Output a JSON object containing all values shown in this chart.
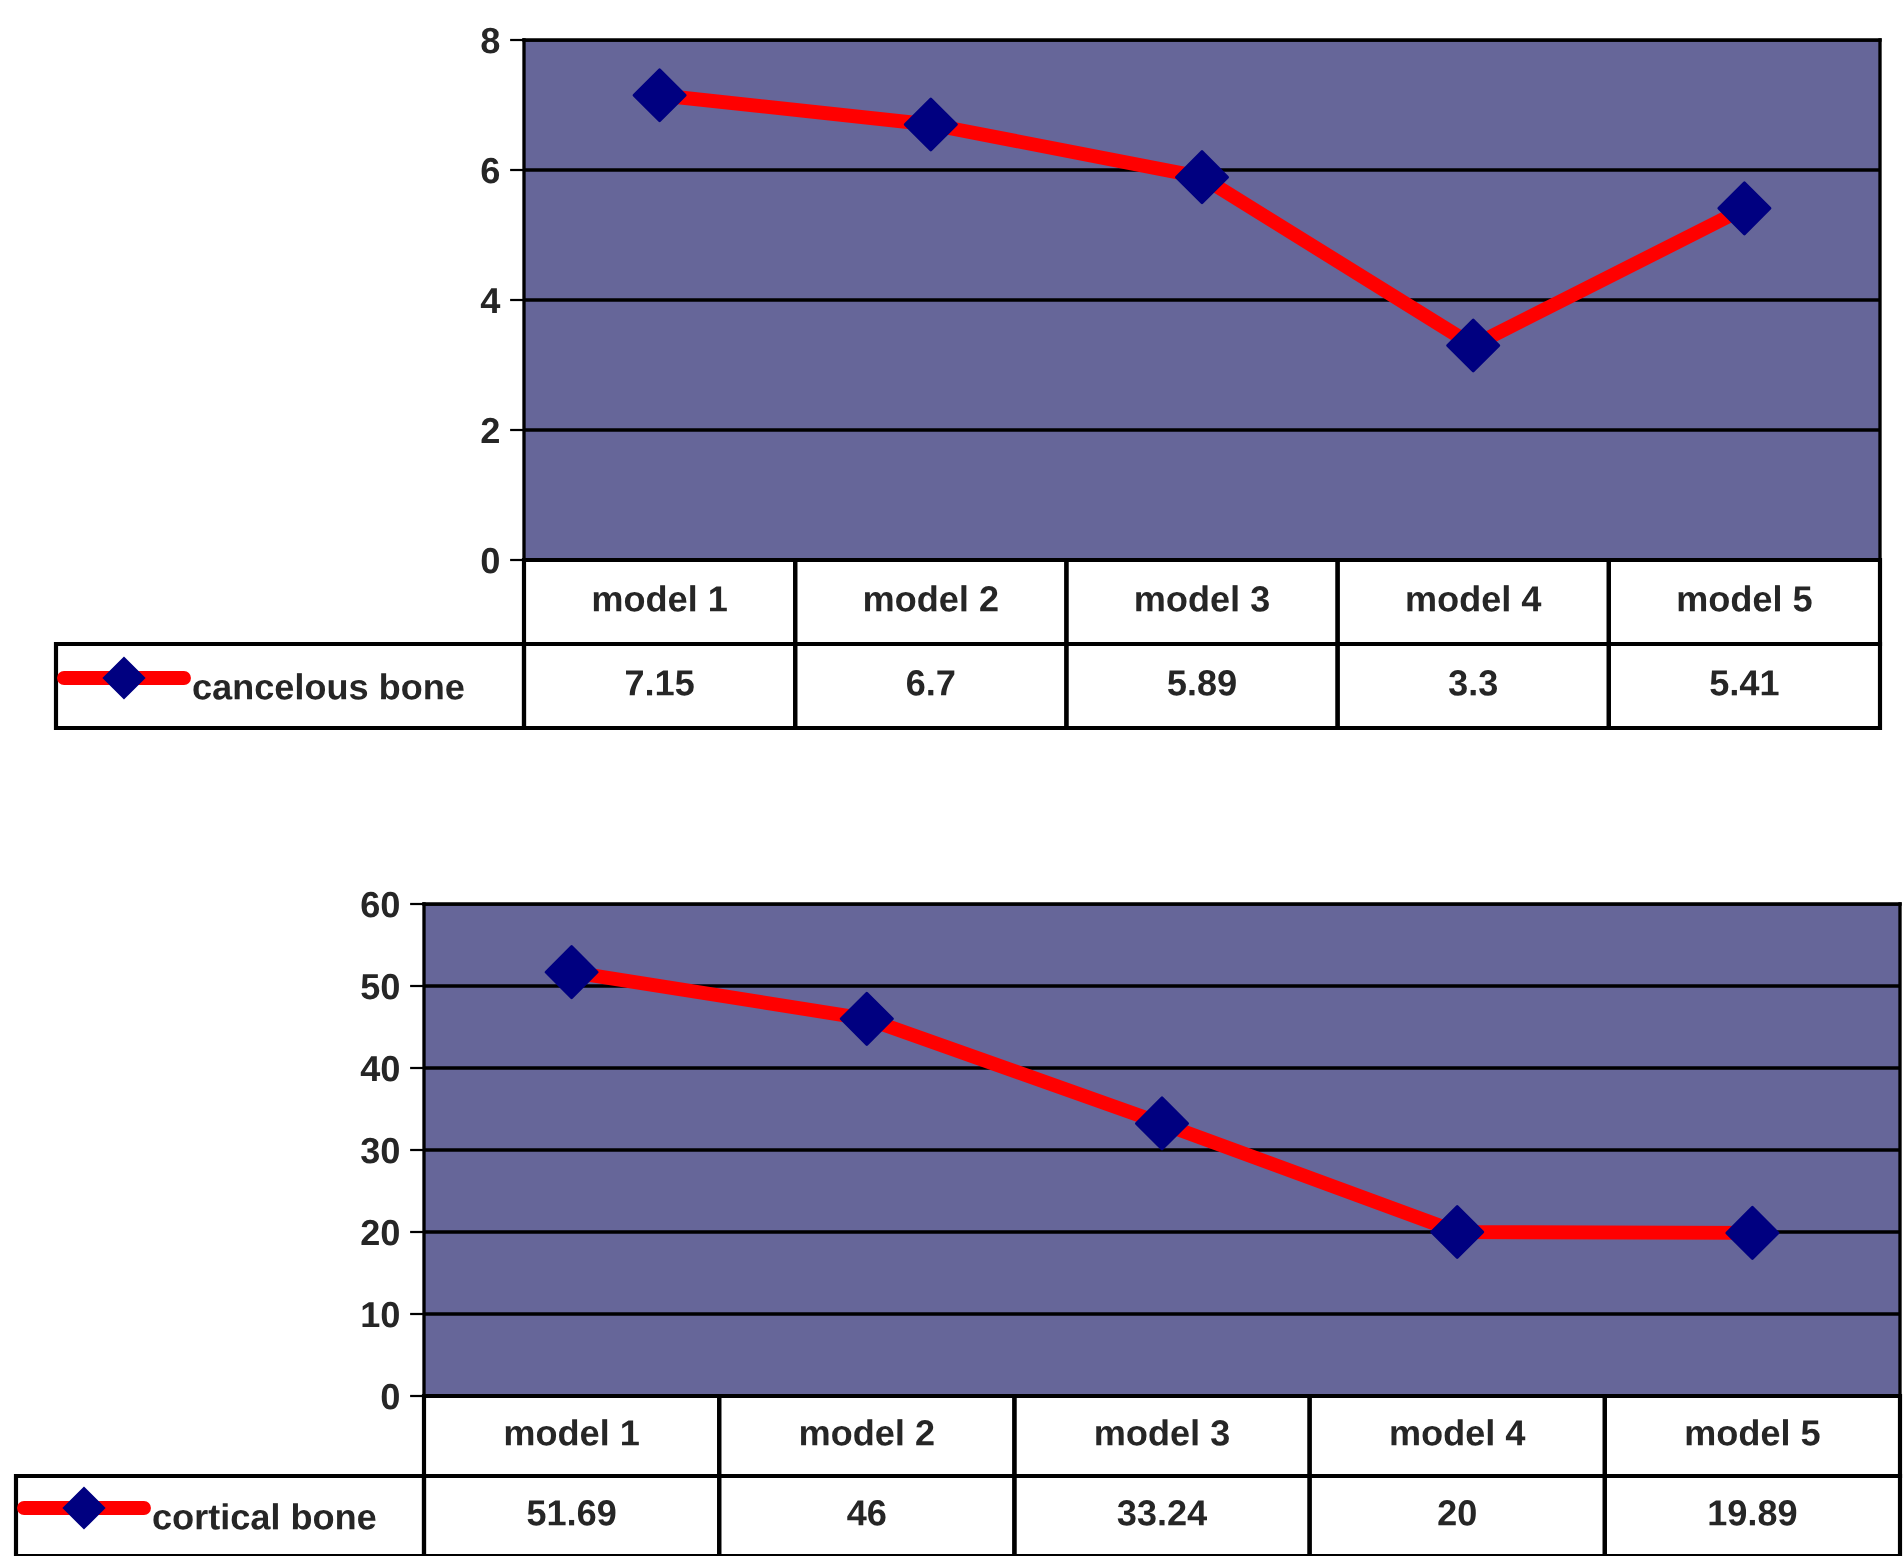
{
  "chart_data": [
    {
      "type": "line",
      "categories": [
        "model 1",
        "model 2",
        "model 3",
        "model 4",
        "model 5"
      ],
      "series": [
        {
          "name": "cancelous bone",
          "color": "#ff0000",
          "values": [
            7.15,
            6.7,
            5.89,
            3.3,
            5.41
          ]
        }
      ],
      "ylim": [
        0,
        8
      ],
      "yticks": [
        0,
        2,
        4,
        6,
        8
      ],
      "grid": "y",
      "marker": "diamond",
      "line_style": "solid",
      "data_labels": true,
      "legend": "bottom left"
    },
    {
      "type": "line",
      "categories": [
        "model 1",
        "model 2",
        "model 3",
        "model 4",
        "model 5"
      ],
      "series": [
        {
          "name": "cortical bone",
          "color": "#ff0000",
          "values": [
            51.69,
            46,
            33.24,
            20,
            19.89
          ]
        }
      ],
      "ylim": [
        0,
        60
      ],
      "yticks": [
        0,
        10,
        20,
        30,
        40,
        50,
        60
      ],
      "grid": "y",
      "marker": "diamond",
      "line_style": "solid",
      "data_labels": true,
      "legend": "bottom left"
    }
  ]
}
